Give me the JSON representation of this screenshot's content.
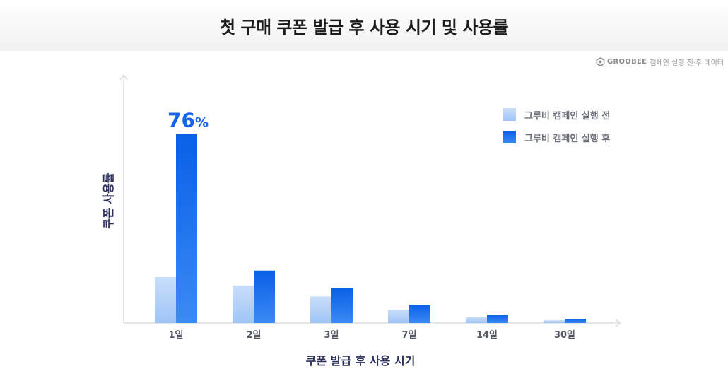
{
  "header": {
    "title": "첫 구매 쿠폰 발급 후 사용 시기 및 사용률"
  },
  "source": {
    "brand": "GROOBEE",
    "note": "캠페인 실행 전·후 데이터",
    "logo_icon": "hexagon-logo-icon"
  },
  "colors": {
    "before_top": "#c9defa",
    "before_bottom": "#9fc4f7",
    "after_top": "#0a5fe6",
    "after_bottom": "#3b8af5",
    "axis": "#dddddd"
  },
  "chart_data": {
    "type": "bar",
    "title": "첫 구매 쿠폰 발급 후 사용 시기 및 사용률",
    "xlabel": "쿠폰 발급 후 사용 시기",
    "ylabel": "쿠폰 사용률",
    "categories": [
      "1일",
      "2일",
      "3일",
      "7일",
      "14일",
      "30일"
    ],
    "series": [
      {
        "name": "그루비 캠페인 실행 전",
        "values": [
          18.5,
          15.1,
          10.7,
          5.4,
          2.3,
          1.1
        ]
      },
      {
        "name": "그루비 캠페인 실행 후",
        "values": [
          76,
          21.1,
          14.1,
          7.3,
          3.4,
          1.7
        ]
      }
    ],
    "ylim": [
      0,
      100
    ],
    "data_labels": [
      {
        "series": 1,
        "index": 0,
        "value": "76",
        "unit": "%"
      }
    ],
    "legend_position": "top-right",
    "grid": false
  }
}
